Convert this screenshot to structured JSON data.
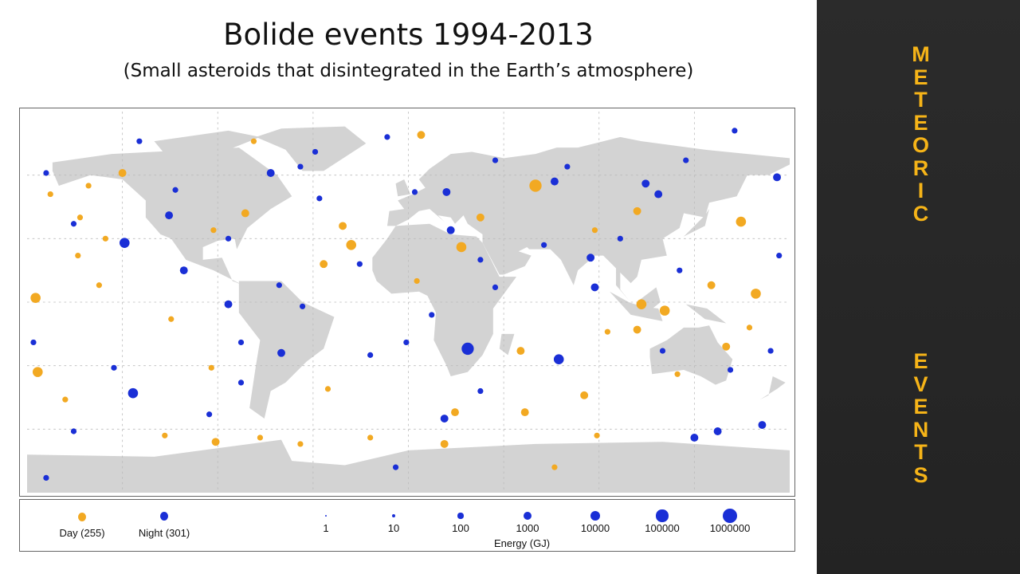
{
  "slide": {
    "title": "Bolide events 1994-2013",
    "subtitle": "(Small asteroids that disintegrated in the Earth’s atmosphere)"
  },
  "side_panel": {
    "word1": "METEORIC",
    "word2": "EVENTS",
    "color": "#f6b418"
  },
  "legend": {
    "day_label": "Day (255)",
    "night_label": "Night (301)",
    "energy_title": "Energy (GJ)",
    "energy_levels": [
      "1",
      "10",
      "100",
      "1000",
      "10000",
      "100000",
      "1000000"
    ],
    "day_color": "#f2a922",
    "night_color": "#1a2fd6"
  },
  "chart_data": {
    "type": "scatter",
    "projection": "equirectangular",
    "xlim": [
      -180,
      180
    ],
    "ylim": [
      -90,
      90
    ],
    "grid": true,
    "grid_step_lon": 45,
    "grid_step_lat": 30,
    "legend_placement": "bottom",
    "points": [
      {
        "lon": 60,
        "lat": 55,
        "e": 100000,
        "t": "day"
      },
      {
        "lon": 157,
        "lat": 38,
        "e": 10000,
        "t": "day"
      },
      {
        "lon": 25,
        "lat": 26,
        "e": 10000,
        "t": "day"
      },
      {
        "lon": -27,
        "lat": 27,
        "e": 10000,
        "t": "day"
      },
      {
        "lon": -31,
        "lat": 36,
        "e": 1000,
        "t": "day"
      },
      {
        "lon": -175,
        "lat": -33,
        "e": 10000,
        "t": "day"
      },
      {
        "lon": -176,
        "lat": 2,
        "e": 10000,
        "t": "day"
      },
      {
        "lon": 121,
        "lat": -4,
        "e": 10000,
        "t": "day"
      },
      {
        "lon": 110,
        "lat": -1,
        "e": 10000,
        "t": "day"
      },
      {
        "lon": 164,
        "lat": 4,
        "e": 10000,
        "t": "day"
      },
      {
        "lon": 17,
        "lat": -67,
        "e": 1000,
        "t": "day"
      },
      {
        "lon": 108,
        "lat": -13,
        "e": 1000,
        "t": "day"
      },
      {
        "lon": -135,
        "lat": 61,
        "e": 1000,
        "t": "day"
      },
      {
        "lon": 53,
        "lat": -23,
        "e": 1000,
        "t": "day"
      },
      {
        "lon": -77,
        "lat": 42,
        "e": 1000,
        "t": "day"
      },
      {
        "lon": 55,
        "lat": -52,
        "e": 1000,
        "t": "day"
      },
      {
        "lon": 83,
        "lat": -44,
        "e": 1000,
        "t": "day"
      },
      {
        "lon": 22,
        "lat": -52,
        "e": 1000,
        "t": "day"
      },
      {
        "lon": 6,
        "lat": 79,
        "e": 1000,
        "t": "day"
      },
      {
        "lon": -73,
        "lat": 76,
        "e": 100,
        "t": "day"
      },
      {
        "lon": -169,
        "lat": 51,
        "e": 100,
        "t": "day"
      },
      {
        "lon": -151,
        "lat": 55,
        "e": 100,
        "t": "day"
      },
      {
        "lon": -146,
        "lat": 8,
        "e": 100,
        "t": "day"
      },
      {
        "lon": -143,
        "lat": 30,
        "e": 100,
        "t": "day"
      },
      {
        "lon": -156,
        "lat": 22,
        "e": 100,
        "t": "day"
      },
      {
        "lon": -112,
        "lat": -8,
        "e": 100,
        "t": "day"
      },
      {
        "lon": -93,
        "lat": -31,
        "e": 100,
        "t": "day"
      },
      {
        "lon": -91,
        "lat": -66,
        "e": 1000,
        "t": "day"
      },
      {
        "lon": -70,
        "lat": -64,
        "e": 100,
        "t": "day"
      },
      {
        "lon": -38,
        "lat": -41,
        "e": 100,
        "t": "day"
      },
      {
        "lon": -18,
        "lat": -64,
        "e": 100,
        "t": "day"
      },
      {
        "lon": 4,
        "lat": 10,
        "e": 100,
        "t": "day"
      },
      {
        "lon": 34,
        "lat": 40,
        "e": 1000,
        "t": "day"
      },
      {
        "lon": 88,
        "lat": 34,
        "e": 100,
        "t": "day"
      },
      {
        "lon": 108,
        "lat": 43,
        "e": 1000,
        "t": "day"
      },
      {
        "lon": 143,
        "lat": 8,
        "e": 1000,
        "t": "day"
      },
      {
        "lon": 161,
        "lat": -12,
        "e": 100,
        "t": "day"
      },
      {
        "lon": 150,
        "lat": -21,
        "e": 1000,
        "t": "day"
      },
      {
        "lon": 127,
        "lat": -34,
        "e": 100,
        "t": "day"
      },
      {
        "lon": 94,
        "lat": -14,
        "e": 100,
        "t": "day"
      },
      {
        "lon": 69,
        "lat": -78,
        "e": 100,
        "t": "day"
      },
      {
        "lon": 89,
        "lat": -63,
        "e": 100,
        "t": "day"
      },
      {
        "lon": -51,
        "lat": -67,
        "e": 100,
        "t": "day"
      },
      {
        "lon": -115,
        "lat": -63,
        "e": 100,
        "t": "day"
      },
      {
        "lon": -162,
        "lat": -46,
        "e": 100,
        "t": "day"
      },
      {
        "lon": -155,
        "lat": 40,
        "e": 100,
        "t": "day"
      },
      {
        "lon": -92,
        "lat": 34,
        "e": 100,
        "t": "day"
      },
      {
        "lon": -40,
        "lat": 18,
        "e": 1000,
        "t": "day"
      },
      {
        "lon": -134,
        "lat": 28,
        "e": 10000,
        "t": "night"
      },
      {
        "lon": 28,
        "lat": -22,
        "e": 100000,
        "t": "night"
      },
      {
        "lon": 71,
        "lat": -27,
        "e": 10000,
        "t": "night"
      },
      {
        "lon": -130,
        "lat": -43,
        "e": 10000,
        "t": "night"
      },
      {
        "lon": -65,
        "lat": 61,
        "e": 1000,
        "t": "night"
      },
      {
        "lon": 20,
        "lat": 34,
        "e": 1000,
        "t": "night"
      },
      {
        "lon": 88,
        "lat": 7,
        "e": 1000,
        "t": "night"
      },
      {
        "lon": 118,
        "lat": 51,
        "e": 1000,
        "t": "night"
      },
      {
        "lon": 174,
        "lat": 59,
        "e": 1000,
        "t": "night"
      },
      {
        "lon": 112,
        "lat": 56,
        "e": 1000,
        "t": "night"
      },
      {
        "lon": -85,
        "lat": -1,
        "e": 1000,
        "t": "night"
      },
      {
        "lon": 17,
        "lat": -55,
        "e": 1000,
        "t": "night"
      },
      {
        "lon": -106,
        "lat": 15,
        "e": 1000,
        "t": "night"
      },
      {
        "lon": 146,
        "lat": -61,
        "e": 1000,
        "t": "night"
      },
      {
        "lon": -10,
        "lat": 78,
        "e": 100,
        "t": "night"
      },
      {
        "lon": -44,
        "lat": 71,
        "e": 100,
        "t": "night"
      },
      {
        "lon": -127,
        "lat": 76,
        "e": 100,
        "t": "night"
      },
      {
        "lon": 69,
        "lat": 57,
        "e": 1000,
        "t": "night"
      },
      {
        "lon": 167,
        "lat": -58,
        "e": 1000,
        "t": "night"
      },
      {
        "lon": -171,
        "lat": 61,
        "e": 100,
        "t": "night"
      },
      {
        "lon": -158,
        "lat": 37,
        "e": 100,
        "t": "night"
      },
      {
        "lon": -110,
        "lat": 53,
        "e": 100,
        "t": "night"
      },
      {
        "lon": -113,
        "lat": 41,
        "e": 1000,
        "t": "night"
      },
      {
        "lon": -85,
        "lat": 30,
        "e": 100,
        "t": "night"
      },
      {
        "lon": -61,
        "lat": 8,
        "e": 100,
        "t": "night"
      },
      {
        "lon": -50,
        "lat": -2,
        "e": 100,
        "t": "night"
      },
      {
        "lon": -60,
        "lat": -24,
        "e": 1000,
        "t": "night"
      },
      {
        "lon": -18,
        "lat": -25,
        "e": 100,
        "t": "night"
      },
      {
        "lon": -1,
        "lat": -19,
        "e": 100,
        "t": "night"
      },
      {
        "lon": 11,
        "lat": -6,
        "e": 100,
        "t": "night"
      },
      {
        "lon": 34,
        "lat": 20,
        "e": 100,
        "t": "night"
      },
      {
        "lon": 41,
        "lat": 7,
        "e": 100,
        "t": "night"
      },
      {
        "lon": 64,
        "lat": 27,
        "e": 100,
        "t": "night"
      },
      {
        "lon": 86,
        "lat": 21,
        "e": 1000,
        "t": "night"
      },
      {
        "lon": 100,
        "lat": 30,
        "e": 100,
        "t": "night"
      },
      {
        "lon": 128,
        "lat": 15,
        "e": 100,
        "t": "night"
      },
      {
        "lon": 152,
        "lat": -32,
        "e": 100,
        "t": "night"
      },
      {
        "lon": 175,
        "lat": 22,
        "e": 100,
        "t": "night"
      },
      {
        "lon": 171,
        "lat": -23,
        "e": 100,
        "t": "night"
      },
      {
        "lon": 135,
        "lat": -64,
        "e": 1000,
        "t": "night"
      },
      {
        "lon": 120,
        "lat": -23,
        "e": 100,
        "t": "night"
      },
      {
        "lon": 34,
        "lat": -42,
        "e": 100,
        "t": "night"
      },
      {
        "lon": -6,
        "lat": -78,
        "e": 100,
        "t": "night"
      },
      {
        "lon": -171,
        "lat": -83,
        "e": 100,
        "t": "night"
      },
      {
        "lon": -158,
        "lat": -61,
        "e": 100,
        "t": "night"
      },
      {
        "lon": -139,
        "lat": -31,
        "e": 100,
        "t": "night"
      },
      {
        "lon": -177,
        "lat": -19,
        "e": 100,
        "t": "night"
      },
      {
        "lon": -94,
        "lat": -53,
        "e": 100,
        "t": "night"
      },
      {
        "lon": -79,
        "lat": -19,
        "e": 100,
        "t": "night"
      },
      {
        "lon": -42,
        "lat": 49,
        "e": 100,
        "t": "night"
      },
      {
        "lon": 3,
        "lat": 52,
        "e": 100,
        "t": "night"
      },
      {
        "lon": 18,
        "lat": 52,
        "e": 1000,
        "t": "night"
      },
      {
        "lon": 41,
        "lat": 67,
        "e": 100,
        "t": "night"
      },
      {
        "lon": 75,
        "lat": 64,
        "e": 100,
        "t": "night"
      },
      {
        "lon": 131,
        "lat": 67,
        "e": 100,
        "t": "night"
      },
      {
        "lon": 154,
        "lat": 81,
        "e": 100,
        "t": "night"
      },
      {
        "lon": -51,
        "lat": 64,
        "e": 100,
        "t": "night"
      },
      {
        "lon": -23,
        "lat": 18,
        "e": 100,
        "t": "night"
      },
      {
        "lon": -79,
        "lat": -38,
        "e": 100,
        "t": "night"
      }
    ]
  }
}
